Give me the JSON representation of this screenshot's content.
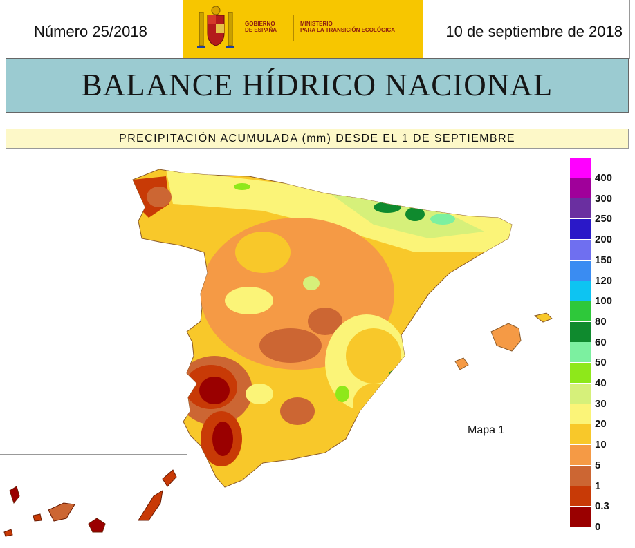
{
  "header": {
    "issue_number": "Número 25/2018",
    "date": "10 de septiembre de 2018",
    "gov_line": "GOBIERNO\nDE ESPAÑA",
    "ministry_line": "MINISTERIO\nPARA LA TRANSICIÓN ECOLÓGICA"
  },
  "title": "BALANCE HÍDRICO NACIONAL",
  "subtitle": "PRECIPITACIÓN ACUMULADA (mm) DESDE EL 1 DE SEPTIEMBRE",
  "map": {
    "label": "Mapa 1"
  },
  "legend": {
    "classes": [
      {
        "label": "400",
        "color": "#ff00ff"
      },
      {
        "label": "300",
        "color": "#a0009a"
      },
      {
        "label": "250",
        "color": "#6a2fa0"
      },
      {
        "label": "200",
        "color": "#2a18c8"
      },
      {
        "label": "150",
        "color": "#6f6ff0"
      },
      {
        "label": "120",
        "color": "#3a8cf2"
      },
      {
        "label": "100",
        "color": "#0dc4f2"
      },
      {
        "label": "80",
        "color": "#2ec83a"
      },
      {
        "label": "60",
        "color": "#0f8a2e"
      },
      {
        "label": "50",
        "color": "#7cf0a0"
      },
      {
        "label": "40",
        "color": "#8ee81a"
      },
      {
        "label": "30",
        "color": "#d6f07a"
      },
      {
        "label": "20",
        "color": "#fbf478"
      },
      {
        "label": "10",
        "color": "#f8c82a"
      },
      {
        "label": "5",
        "color": "#f59a45"
      },
      {
        "label": "1",
        "color": "#cc6633"
      },
      {
        "label": "0.3",
        "color": "#c83a06"
      },
      {
        "label": "0",
        "color": "#9a0000"
      }
    ]
  }
}
